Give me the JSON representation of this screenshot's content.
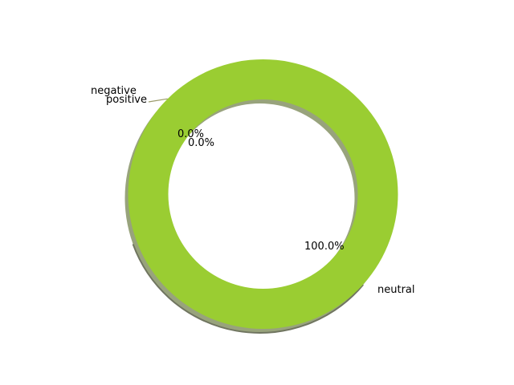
{
  "chart_data": {
    "type": "pie",
    "subtype": "donut",
    "shadow": true,
    "start_angle_deg": 135,
    "direction": "counterclockwise",
    "slices": [
      {
        "label": "negative",
        "value": 0.0,
        "pct_label": "0.0%",
        "color": "#b8860b"
      },
      {
        "label": "positive",
        "value": 0.0,
        "pct_label": "0.0%",
        "color": "#ff6347"
      },
      {
        "label": "neutral",
        "value": 100.0,
        "pct_label": "100.0%",
        "color": "#9acd32"
      }
    ],
    "shadow_color": "#98a37c",
    "leader_color": "#9a9a6a",
    "title": "",
    "legend": "none"
  }
}
